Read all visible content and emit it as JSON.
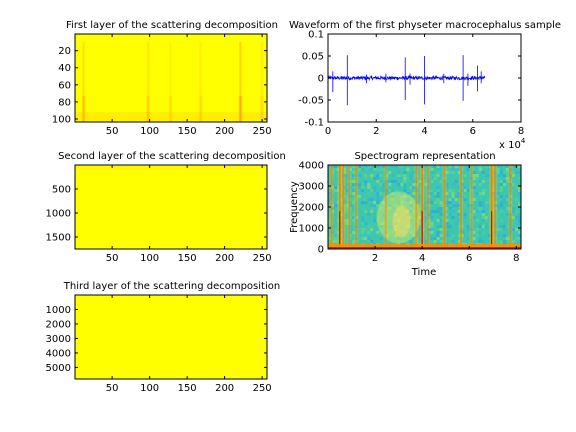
{
  "chart_data": [
    {
      "type": "heatmap",
      "title": "First layer of the scattering decomposition",
      "x_ticks": [
        50,
        100,
        150,
        200,
        250
      ],
      "y_ticks": [
        20,
        40,
        60,
        80,
        100
      ],
      "xlim": [
        0.5,
        256.5
      ],
      "ylim": [
        0.5,
        103.5
      ],
      "y_direction": "reversed",
      "colormap": "jet (saturated yellow)",
      "highlight_columns": [
        {
          "x": 12,
          "strength": 0.55
        },
        {
          "x": 98,
          "strength": 0.45
        },
        {
          "x": 128,
          "strength": 0.3
        },
        {
          "x": 168,
          "strength": 0.3
        },
        {
          "x": 221,
          "strength": 0.75
        },
        {
          "x": 250,
          "strength": 0.3
        }
      ]
    },
    {
      "type": "heatmap",
      "title": "Second layer of the scattering decomposition",
      "x_ticks": [
        50,
        100,
        150,
        200,
        250
      ],
      "y_ticks": [
        500,
        1000,
        1500
      ],
      "xlim": [
        0.5,
        256.5
      ],
      "ylim": [
        0.5,
        1750
      ],
      "y_direction": "reversed",
      "colormap": "jet (saturated yellow)"
    },
    {
      "type": "heatmap",
      "title": "Third layer of the scattering decomposition",
      "x_ticks": [
        50,
        100,
        150,
        200,
        250
      ],
      "y_ticks": [
        1000,
        2000,
        3000,
        4000,
        5000
      ],
      "xlim": [
        0.5,
        256.5
      ],
      "ylim": [
        0.5,
        5800
      ],
      "y_direction": "reversed",
      "colormap": "jet (saturated yellow)"
    },
    {
      "type": "line",
      "title": "Waveform of the first physeter macrocephalus sample",
      "xlim": [
        0,
        80000
      ],
      "ylim": [
        -0.1,
        0.1
      ],
      "x_ticks": [
        0,
        2,
        4,
        6,
        8
      ],
      "x_multiplier_label": "x 10",
      "x_multiplier_exponent": "4",
      "y_ticks": [
        "-0.1",
        "-0.05",
        "0",
        "0.05",
        "0.1"
      ],
      "color": "#0000ff",
      "signal_end": 65000,
      "noise_amplitude": 0.004,
      "clicks": [
        {
          "x": 2000,
          "up": 0.015,
          "down": -0.032
        },
        {
          "x": 8000,
          "up": 0.052,
          "down": -0.062
        },
        {
          "x": 16000,
          "up": 0.008,
          "down": -0.012
        },
        {
          "x": 24000,
          "up": 0.01,
          "down": -0.01
        },
        {
          "x": 32000,
          "up": 0.047,
          "down": -0.05
        },
        {
          "x": 34000,
          "up": 0.01,
          "down": -0.015
        },
        {
          "x": 40000,
          "up": 0.05,
          "down": -0.06
        },
        {
          "x": 48000,
          "up": 0.01,
          "down": -0.012
        },
        {
          "x": 56000,
          "up": 0.052,
          "down": -0.052
        },
        {
          "x": 58000,
          "up": 0.01,
          "down": -0.018
        },
        {
          "x": 62000,
          "up": 0.028,
          "down": -0.03
        },
        {
          "x": 63500,
          "up": 0.015,
          "down": -0.012
        }
      ]
    },
    {
      "type": "heatmap",
      "title": "Spectrogram representation",
      "xlabel": "Time",
      "ylabel": "Frequency",
      "xlim": [
        0,
        8.2
      ],
      "ylim": [
        0,
        4000
      ],
      "x_ticks": [
        2,
        4,
        6,
        8
      ],
      "y_ticks": [
        0,
        1000,
        2000,
        3000,
        4000
      ],
      "colormap": "jet",
      "bright_columns": [
        {
          "t": 0.15,
          "strength": 0.6
        },
        {
          "t": 0.5,
          "strength": 0.9
        },
        {
          "t": 0.65,
          "strength": 0.7
        },
        {
          "t": 0.9,
          "strength": 0.5
        },
        {
          "t": 1.2,
          "strength": 0.45
        },
        {
          "t": 2.45,
          "strength": 0.45
        },
        {
          "t": 3.75,
          "strength": 0.55
        },
        {
          "t": 4.0,
          "strength": 0.85
        },
        {
          "t": 4.25,
          "strength": 0.5
        },
        {
          "t": 4.95,
          "strength": 0.6
        },
        {
          "t": 5.65,
          "strength": 0.6
        },
        {
          "t": 6.1,
          "strength": 0.5
        },
        {
          "t": 6.95,
          "strength": 0.95
        },
        {
          "t": 7.1,
          "strength": 0.6
        },
        {
          "t": 7.75,
          "strength": 0.5
        }
      ],
      "band_center_time": 3.0,
      "band_center_freq": 1500
    }
  ]
}
